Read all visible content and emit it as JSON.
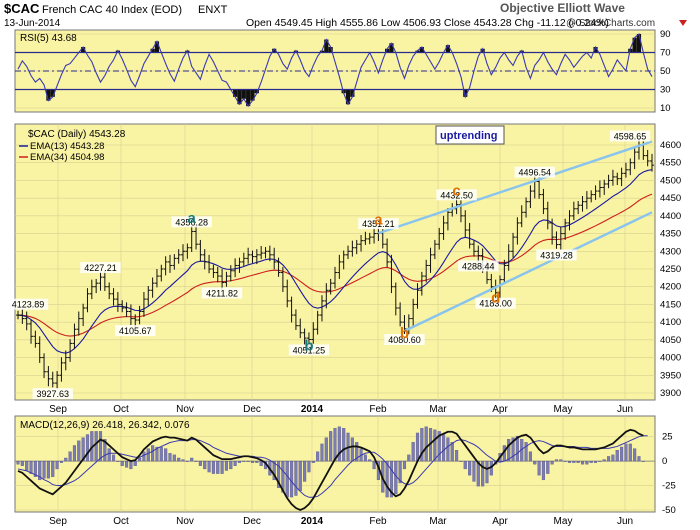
{
  "header": {
    "symbol": "$CAC",
    "name": "French CAC 40 Index (EOD)",
    "exchange": "ENXT",
    "date": "13-Jun-2014",
    "source": "Objective Elliott Wave",
    "watermark": "@ StockCharts.com",
    "ohlc": "Open 4549.45  High 4555.86  Low 4506.93  Close 4543.28  Chg -11.12 (-0.24%)"
  },
  "chart_data": [
    {
      "panel": "rsi",
      "type": "line",
      "title": "RSI(5) 43.68",
      "ylim": [
        10,
        90
      ],
      "yticks": [
        10,
        30,
        50,
        70,
        90
      ],
      "reference_lines": [
        30,
        50,
        70
      ],
      "values": [
        52,
        61,
        55,
        45,
        38,
        42,
        35,
        18,
        22,
        34,
        46,
        56,
        58,
        64,
        70,
        76,
        67,
        60,
        48,
        38,
        45,
        55,
        62,
        72,
        63,
        52,
        40,
        33,
        45,
        58,
        66,
        74,
        82,
        70,
        58,
        47,
        39,
        52,
        64,
        72,
        55,
        48,
        41,
        56,
        68,
        60,
        50,
        40,
        38,
        30,
        22,
        14,
        20,
        12,
        18,
        26,
        38,
        52,
        66,
        74,
        68,
        58,
        52,
        64,
        72,
        62,
        50,
        44,
        56,
        66,
        72,
        84,
        76,
        60,
        44,
        26,
        14,
        22,
        38,
        54,
        62,
        70,
        60,
        48,
        62,
        74,
        80,
        70,
        54,
        42,
        56,
        66,
        72,
        76,
        68,
        60,
        52,
        60,
        70,
        78,
        70,
        58,
        44,
        22,
        32,
        50,
        66,
        74,
        58,
        46,
        54,
        64,
        70,
        62,
        56,
        66,
        72,
        54,
        42,
        56,
        62,
        70,
        60,
        52,
        46,
        58,
        68,
        62,
        54,
        60,
        66,
        70,
        64,
        76,
        68,
        56,
        44,
        52,
        62,
        56,
        50,
        74,
        86,
        90,
        70,
        52,
        44
      ]
    },
    {
      "panel": "price",
      "type": "line",
      "title": "$CAC (Daily) 4543.28",
      "xlabel": "",
      "ylabel": "",
      "ylim": [
        3900,
        4600
      ],
      "yticks": [
        3900,
        3950,
        4000,
        4050,
        4100,
        4150,
        4200,
        4250,
        4300,
        4350,
        4400,
        4450,
        4500,
        4550,
        4600
      ],
      "x_month_labels": [
        "Sep",
        "Oct",
        "Nov",
        "Dec",
        "2014",
        "Feb",
        "Mar",
        "Apr",
        "May",
        "Jun"
      ],
      "series": [
        {
          "name": "$CAC (Daily) 4543.28",
          "values": [
            4120,
            4110,
            4095,
            4060,
            4040,
            4000,
            3960,
            3940,
            3928,
            3950,
            3985,
            4000,
            4040,
            4080,
            4110,
            4140,
            4180,
            4200,
            4210,
            4227,
            4200,
            4180,
            4165,
            4150,
            4140,
            4130,
            4110,
            4106,
            4130,
            4165,
            4190,
            4210,
            4230,
            4250,
            4270,
            4260,
            4280,
            4290,
            4300,
            4310,
            4356,
            4320,
            4290,
            4270,
            4250,
            4240,
            4230,
            4212,
            4230,
            4245,
            4260,
            4270,
            4280,
            4290,
            4285,
            4290,
            4295,
            4300,
            4290,
            4270,
            4240,
            4200,
            4160,
            4120,
            4090,
            4070,
            4055,
            4051,
            4080,
            4120,
            4160,
            4190,
            4210,
            4240,
            4270,
            4290,
            4300,
            4310,
            4320,
            4330,
            4335,
            4340,
            4350,
            4351,
            4320,
            4270,
            4200,
            4140,
            4100,
            4081,
            4110,
            4150,
            4190,
            4230,
            4260,
            4290,
            4320,
            4350,
            4380,
            4410,
            4420,
            4432,
            4400,
            4360,
            4320,
            4300,
            4288,
            4260,
            4220,
            4200,
            4183,
            4220,
            4260,
            4300,
            4340,
            4380,
            4410,
            4440,
            4470,
            4497,
            4460,
            4420,
            4380,
            4340,
            4319,
            4350,
            4380,
            4400,
            4420,
            4430,
            4440,
            4450,
            4460,
            4470,
            4480,
            4490,
            4500,
            4510,
            4505,
            4520,
            4530,
            4550,
            4580,
            4599,
            4570,
            4555,
            4543
          ]
        },
        {
          "name": "EMA(13) 4543.28",
          "color": "#1a1aa0"
        },
        {
          "name": "EMA(34) 4504.98",
          "color": "#cc1f1f"
        }
      ],
      "labeled_points": [
        {
          "label": "4123.89",
          "x": 0,
          "y": 4123.89
        },
        {
          "label": "3927.63",
          "x": 8,
          "y": 3927.63
        },
        {
          "label": "4227.21",
          "x": 19,
          "y": 4227.21
        },
        {
          "label": "4105.67",
          "x": 27,
          "y": 4105.67
        },
        {
          "label": "4356.28",
          "x": 40,
          "y": 4356.28
        },
        {
          "label": "4211.82",
          "x": 47,
          "y": 4211.82
        },
        {
          "label": "4051.25",
          "x": 67,
          "y": 4051.25
        },
        {
          "label": "4351.21",
          "x": 83,
          "y": 4351.21
        },
        {
          "label": "4080.60",
          "x": 89,
          "y": 4080.6
        },
        {
          "label": "4432.50",
          "x": 101,
          "y": 4432.5
        },
        {
          "label": "4288.44",
          "x": 106,
          "y": 4288.44
        },
        {
          "label": "4183.00",
          "x": 110,
          "y": 4183.0
        },
        {
          "label": "4496.54",
          "x": 119,
          "y": 4496.54
        },
        {
          "label": "4319.28",
          "x": 124,
          "y": 4319.28
        },
        {
          "label": "4598.65",
          "x": 143,
          "y": 4598.65
        }
      ],
      "wave_labels": [
        {
          "label": "a",
          "x": 40,
          "y": 4380,
          "color": "#1a7a7a"
        },
        {
          "label": "b",
          "x": 67,
          "y": 4020,
          "color": "#1a7a7a"
        },
        {
          "label": "a",
          "x": 83,
          "y": 4375,
          "color": "#e07000"
        },
        {
          "label": "b",
          "x": 89,
          "y": 4055,
          "color": "#e07000"
        },
        {
          "label": "c",
          "x": 101,
          "y": 4458,
          "color": "#e07000"
        },
        {
          "label": "d",
          "x": 110,
          "y": 4155,
          "color": "#e07000"
        }
      ],
      "channel_lines": [
        {
          "from": [
            83,
            4351
          ],
          "to": [
            146,
            4610
          ]
        },
        {
          "from": [
            89,
            4075
          ],
          "to": [
            146,
            4410
          ]
        }
      ],
      "annotation": "uptrending"
    },
    {
      "panel": "macd",
      "type": "line",
      "title": "MACD(12,26,9) 26.418, 26.342, 0.076",
      "ylim": [
        -50,
        40
      ],
      "yticks": [
        -50,
        -25,
        0,
        25
      ],
      "series": [
        {
          "name": "MACD",
          "values": [
            -10,
            -12,
            -16,
            -20,
            -24,
            -28,
            -30,
            -32,
            -34,
            -30,
            -26,
            -22,
            -16,
            -10,
            -4,
            2,
            8,
            14,
            18,
            22,
            20,
            16,
            12,
            8,
            4,
            2,
            0,
            1,
            6,
            12,
            16,
            20,
            22,
            24,
            25,
            24,
            24,
            23,
            22,
            21,
            24,
            22,
            18,
            14,
            10,
            6,
            4,
            2,
            2,
            2,
            3,
            4,
            5,
            5,
            4,
            3,
            1,
            -2,
            -8,
            -14,
            -22,
            -30,
            -38,
            -44,
            -48,
            -50,
            -48,
            -44,
            -38,
            -30,
            -22,
            -14,
            -6,
            2,
            8,
            12,
            14,
            15,
            15,
            14,
            12,
            10,
            4,
            -6,
            -18,
            -26,
            -32,
            -36,
            -34,
            -28,
            -20,
            -10,
            0,
            8,
            14,
            18,
            22,
            26,
            28,
            30,
            30,
            28,
            22,
            16,
            10,
            4,
            -2,
            -6,
            -8,
            -6,
            -2,
            4,
            10,
            16,
            20,
            24,
            26,
            27,
            24,
            18,
            12,
            8,
            10,
            14,
            16,
            16,
            15,
            14,
            14,
            13,
            12,
            12,
            12,
            12,
            13,
            14,
            16,
            18,
            22,
            26,
            30,
            32,
            31,
            28,
            26
          ]
        },
        {
          "name": "Signal",
          "values": [
            -8,
            -9,
            -10,
            -12,
            -14,
            -16,
            -19,
            -21,
            -24,
            -25,
            -25,
            -24,
            -22,
            -20,
            -17,
            -13,
            -9,
            -5,
            -1,
            3,
            6,
            8,
            8,
            8,
            7,
            6,
            5,
            4,
            4,
            6,
            8,
            10,
            13,
            15,
            17,
            19,
            20,
            21,
            21,
            21,
            22,
            22,
            21,
            19,
            17,
            14,
            12,
            10,
            8,
            7,
            6,
            5,
            5,
            5,
            5,
            4,
            4,
            3,
            1,
            -2,
            -5,
            -10,
            -15,
            -21,
            -26,
            -31,
            -35,
            -37,
            -37,
            -36,
            -33,
            -29,
            -25,
            -19,
            -14,
            -9,
            -4,
            0,
            3,
            6,
            8,
            9,
            9,
            6,
            2,
            -3,
            -9,
            -15,
            -20,
            -23,
            -24,
            -22,
            -18,
            -13,
            -8,
            -3,
            2,
            7,
            11,
            15,
            18,
            21,
            22,
            21,
            19,
            17,
            14,
            10,
            6,
            3,
            0,
            -1,
            0,
            2,
            5,
            8,
            12,
            15,
            18,
            20,
            21,
            20,
            18,
            16,
            15,
            15,
            15,
            15,
            15,
            14,
            14,
            14,
            13,
            13,
            13,
            13,
            13,
            14,
            15,
            17,
            19,
            21,
            23,
            25,
            26,
            26
          ]
        }
      ]
    }
  ]
}
